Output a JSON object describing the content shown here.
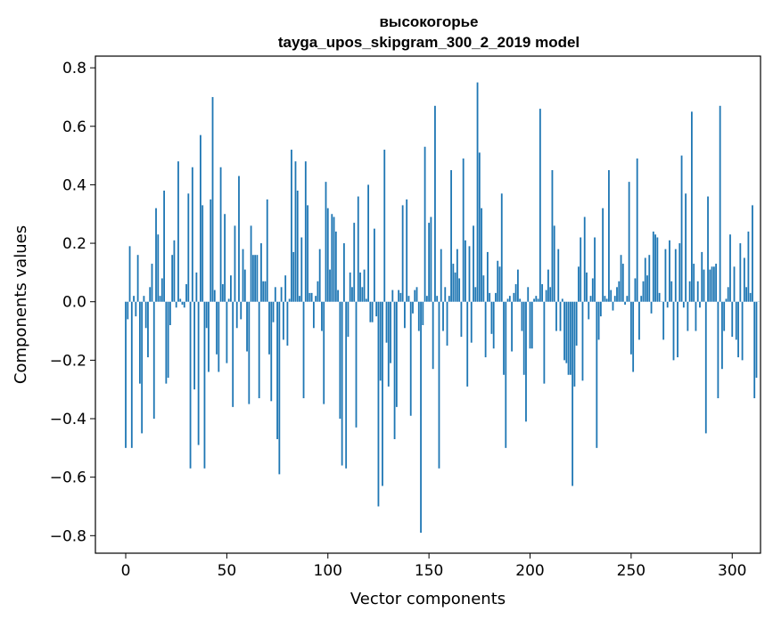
{
  "chart_data": {
    "type": "bar",
    "title": "высокогорье",
    "subtitle": "tayga_upos_skipgram_300_2_2019 model",
    "xlabel": "Vector components",
    "ylabel": "Components values",
    "xlim": [
      -15,
      314
    ],
    "ylim": [
      -0.86,
      0.84
    ],
    "xticks": [
      0,
      50,
      100,
      150,
      200,
      250,
      300
    ],
    "yticks": [
      -0.8,
      -0.6,
      -0.4,
      -0.2,
      0.0,
      0.2,
      0.4,
      0.6,
      0.8
    ],
    "ytick_labels": [
      "−0.8",
      "−0.6",
      "−0.4",
      "−0.2",
      "0.0",
      "0.2",
      "0.4",
      "0.6",
      "0.8"
    ],
    "xtick_labels": [
      "0",
      "50",
      "100",
      "150",
      "200",
      "250",
      "300"
    ],
    "grid": false,
    "bar_color": "#1f77b4",
    "values": [
      -0.5,
      -0.06,
      0.19,
      -0.5,
      0.02,
      -0.05,
      0.16,
      -0.28,
      -0.45,
      0.02,
      -0.09,
      -0.19,
      0.05,
      0.13,
      -0.4,
      0.32,
      0.23,
      0.02,
      0.08,
      0.38,
      -0.28,
      -0.26,
      -0.08,
      0.16,
      0.21,
      -0.02,
      0.48,
      0.01,
      -0.01,
      -0.02,
      0.06,
      0.37,
      -0.57,
      0.46,
      -0.3,
      0.1,
      -0.49,
      0.57,
      0.33,
      -0.57,
      -0.09,
      -0.24,
      0.35,
      0.7,
      0.04,
      -0.18,
      -0.24,
      0.46,
      0.06,
      0.3,
      -0.21,
      0.01,
      0.09,
      -0.36,
      0.26,
      -0.09,
      0.43,
      -0.06,
      0.18,
      0.11,
      -0.17,
      -0.35,
      0.26,
      0.16,
      0.16,
      0.16,
      -0.33,
      0.2,
      0.07,
      0.07,
      0.35,
      -0.18,
      -0.34,
      -0.07,
      0.05,
      -0.47,
      -0.59,
      0.05,
      -0.13,
      0.09,
      -0.15,
      0.01,
      0.52,
      0.17,
      0.48,
      0.38,
      0.02,
      0.22,
      -0.33,
      0.48,
      0.33,
      0.03,
      0.03,
      -0.09,
      0.02,
      0.07,
      0.18,
      -0.1,
      -0.35,
      0.41,
      0.32,
      0.11,
      0.3,
      0.29,
      0.24,
      0.04,
      -0.4,
      -0.56,
      0.2,
      -0.57,
      -0.12,
      0.1,
      0.05,
      0.27,
      -0.43,
      0.36,
      0.1,
      0.05,
      0.11,
      0.01,
      0.4,
      -0.07,
      -0.07,
      0.25,
      -0.05,
      -0.7,
      -0.27,
      -0.63,
      0.52,
      -0.14,
      -0.29,
      -0.21,
      0.04,
      -0.47,
      -0.36,
      0.04,
      0.03,
      0.33,
      -0.09,
      0.35,
      0.02,
      -0.39,
      -0.04,
      0.04,
      0.05,
      -0.1,
      -0.79,
      -0.08,
      0.53,
      0.02,
      0.27,
      0.29,
      -0.23,
      0.67,
      0.02,
      -0.57,
      0.18,
      -0.1,
      0.05,
      -0.15,
      0.02,
      0.45,
      0.13,
      0.1,
      0.18,
      0.08,
      -0.12,
      0.49,
      0.21,
      -0.29,
      0.19,
      -0.14,
      0.26,
      0.05,
      0.75,
      0.51,
      0.32,
      0.09,
      -0.19,
      0.17,
      0.03,
      -0.11,
      -0.16,
      0.03,
      0.14,
      0.12,
      0.37,
      -0.25,
      -0.5,
      0.01,
      0.02,
      -0.17,
      0.03,
      0.06,
      0.11,
      0.01,
      -0.1,
      -0.25,
      -0.41,
      0.05,
      -0.16,
      -0.16,
      0.01,
      0.02,
      0.01,
      0.66,
      0.06,
      -0.28,
      0.04,
      0.11,
      0.05,
      0.45,
      0.26,
      -0.1,
      0.18,
      -0.1,
      0.01,
      -0.2,
      -0.21,
      -0.25,
      -0.25,
      -0.63,
      -0.29,
      -0.15,
      0.12,
      0.22,
      -0.27,
      0.29,
      0.1,
      -0.06,
      0.02,
      0.08,
      0.22,
      -0.5,
      -0.13,
      -0.05,
      0.32,
      0.02,
      0.01,
      0.45,
      0.04,
      -0.03,
      0.02,
      0.05,
      0.07,
      0.16,
      0.13,
      -0.01,
      0.02,
      0.41,
      -0.18,
      -0.24,
      0.08,
      0.49,
      -0.13,
      0.02,
      0.07,
      0.15,
      0.09,
      0.16,
      -0.04,
      0.24,
      0.23,
      0.22,
      0.03,
      0.0,
      -0.13,
      0.18,
      -0.02,
      0.21,
      0.07,
      -0.2,
      0.18,
      -0.19,
      0.2,
      0.5,
      -0.02,
      0.37,
      -0.1,
      0.07,
      0.65,
      0.13,
      -0.1,
      0.07,
      -0.02,
      0.17,
      0.11,
      -0.45,
      0.36,
      0.11,
      0.12,
      0.12,
      0.13,
      -0.33,
      0.67,
      -0.23,
      -0.1,
      0.01,
      0.05,
      0.23,
      -0.12,
      0.12,
      -0.13,
      -0.19,
      0.2,
      -0.2,
      0.15,
      0.05,
      0.24,
      0.03,
      0.33,
      -0.33,
      -0.26,
      0.0
    ]
  }
}
